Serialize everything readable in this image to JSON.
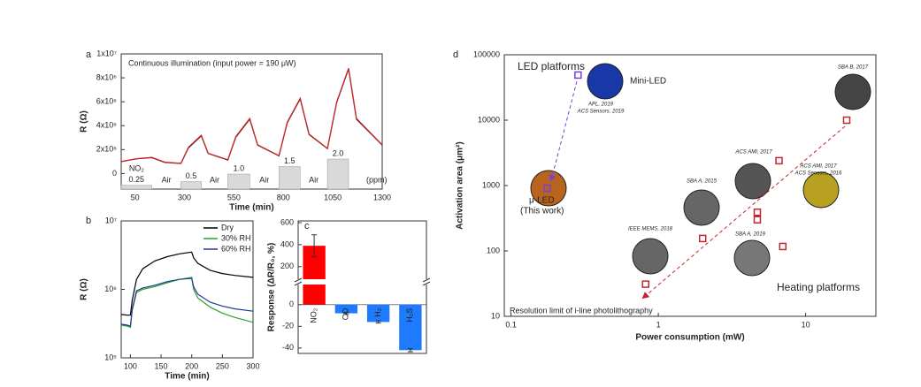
{
  "chart_data": [
    {
      "type": "line",
      "panel_label": "a",
      "annotation": "Continuous illumination (input power = 190 μW)",
      "x_label": "Time (min)",
      "y_label": "R (Ω)",
      "x": [
        -20,
        60,
        135,
        200,
        282,
        320,
        385,
        420,
        519,
        560,
        630,
        670,
        778,
        820,
        885,
        930,
        1023,
        1070,
        1130,
        1170,
        1300
      ],
      "series": [
        {
          "color": "#000000",
          "values": [
            1000000,
            1230000,
            1330000,
            930000,
            840000,
            2150000,
            3150000,
            1680000,
            1130000,
            3050000,
            4550000,
            2380000,
            1480000,
            4250000,
            6250000,
            3270000,
            2080000,
            5950000,
            8750000,
            4550000,
            2380000
          ]
        },
        {
          "color": "#d62728",
          "values": [
            1000000,
            1250000,
            1350000,
            950000,
            850000,
            2200000,
            3200000,
            1700000,
            1150000,
            3100000,
            4600000,
            2400000,
            1500000,
            4300000,
            6300000,
            3300000,
            2100000,
            6000000,
            8800000,
            4600000,
            2400000
          ]
        }
      ],
      "xlim": [
        -20,
        1300
      ],
      "xticks": [
        50,
        300,
        550,
        800,
        1050,
        1300
      ],
      "ylim": [
        -1300000,
        10000000
      ],
      "yticks": [
        0,
        {
          "value": 2000000,
          "label": "2x10⁶"
        },
        {
          "value": 4000000,
          "label": "4x10⁶"
        },
        {
          "value": 6000000,
          "label": "6x10⁶"
        },
        {
          "value": 8000000,
          "label": "8x10⁶"
        },
        {
          "value": 10000000,
          "label": "1x10⁷"
        }
      ],
      "gas": "NO₂",
      "pulse_start": [
        -20,
        282,
        519,
        778,
        1023
      ],
      "pulse_end": [
        135,
        385,
        630,
        885,
        1130
      ],
      "concentrations": [
        0.25,
        0.5,
        1,
        1.5,
        2
      ],
      "concentration_labels": [
        "0.25",
        "0.5",
        "1.0",
        "1.5",
        "2.0"
      ],
      "pulse_color": "#d9d9d9",
      "gap_label": "Air",
      "unit_label": "(ppm)"
    },
    {
      "type": "line",
      "panel_label": "b",
      "x_label": "Time (min)",
      "y_label": "R (Ω)",
      "log_y": true,
      "x": [
        85,
        95,
        100,
        103,
        110,
        120,
        140,
        160,
        180,
        200,
        203,
        210,
        230,
        250,
        270,
        300
      ],
      "series": [
        {
          "name": "Dry",
          "color": "#000000",
          "values": [
            430000,
            420000,
            420000,
            700000,
            1400000,
            2000000,
            2600000,
            3000000,
            3300000,
            3500000,
            2900000,
            2400000,
            1900000,
            1700000,
            1600000,
            1500000
          ]
        },
        {
          "name": "30% RH",
          "color": "#2ca02c",
          "values": [
            300000,
            290000,
            280000,
            500000,
            900000,
            1000000,
            1100000,
            1250000,
            1400000,
            1500000,
            1000000,
            750000,
            550000,
            450000,
            390000,
            330000
          ]
        },
        {
          "name": "60% RH",
          "color": "#1f3a93",
          "values": [
            310000,
            300000,
            290000,
            520000,
            950000,
            1050000,
            1150000,
            1300000,
            1400000,
            1450000,
            1100000,
            850000,
            650000,
            570000,
            520000,
            480000
          ]
        }
      ],
      "xlim": [
        85,
        300
      ],
      "xticks": [
        100,
        150,
        200,
        250,
        300
      ],
      "ylim": [
        100000,
        10000000
      ],
      "yticks": [
        {
          "value": 100000,
          "label": "10⁵"
        },
        {
          "value": 1000000,
          "label": "10⁶"
        },
        {
          "value": 10000000,
          "label": "10⁷"
        }
      ],
      "legend": "upper right"
    },
    {
      "type": "bar",
      "panel_label": "c",
      "y_label": "Response (ΔR/R₀, %)",
      "categories": [
        "NO₂",
        "CO",
        "H₂",
        "H₂S"
      ],
      "values": [
        390,
        -8,
        -16,
        -42
      ],
      "errors": [
        100,
        1,
        1,
        1.5
      ],
      "colors": [
        "#ff0000",
        "#1e7bff",
        "#1e7bff",
        "#1e7bff"
      ],
      "ylim": [
        -45,
        600
      ],
      "yticks": [
        -40,
        -20,
        0,
        200,
        400,
        600
      ],
      "axis_break": [
        10,
        150
      ]
    },
    {
      "type": "scatter",
      "panel_label": "d",
      "x_label": "Power consumption (mW)",
      "y_label": "Activation area (μm²)",
      "log_x": true,
      "log_y": true,
      "xlim": [
        0.09,
        30
      ],
      "ylim": [
        10,
        100000
      ],
      "xticks": [
        0.1,
        1,
        10
      ],
      "yticks": [
        10,
        100,
        1000,
        10000,
        100000
      ],
      "series": [
        {
          "name": "LED platforms",
          "color": "#7b3fd6",
          "x": [
            0.285,
            0.176
          ],
          "values": [
            49000,
            910
          ],
          "point_labels": [
            [
              "Mini-LED"
            ],
            [
              "μ-LED",
              "(This work)"
            ]
          ]
        },
        {
          "name": "Heating platforms",
          "color": "#c0282d",
          "x": [
            19,
            6.6,
            4.7,
            4.7,
            2.0,
            7.0,
            0.82
          ],
          "values": [
            10000,
            2400,
            390,
            300,
            155,
            117,
            31
          ]
        }
      ],
      "references": [
        [
          "APL, 2019",
          "ACS Sensors, 2019"
        ],
        [
          "SBA B, 2017"
        ],
        [
          "ACS AMI, 2017"
        ],
        [
          "ACS AMI, 2017",
          "ACS Sensors, 2016"
        ],
        [
          "SBA A, 2015"
        ],
        [
          "SBA A, 2019"
        ],
        [
          "IEEE MEMS, 2018"
        ]
      ],
      "annotation": "Resolution limit of i-line photolithography"
    }
  ]
}
